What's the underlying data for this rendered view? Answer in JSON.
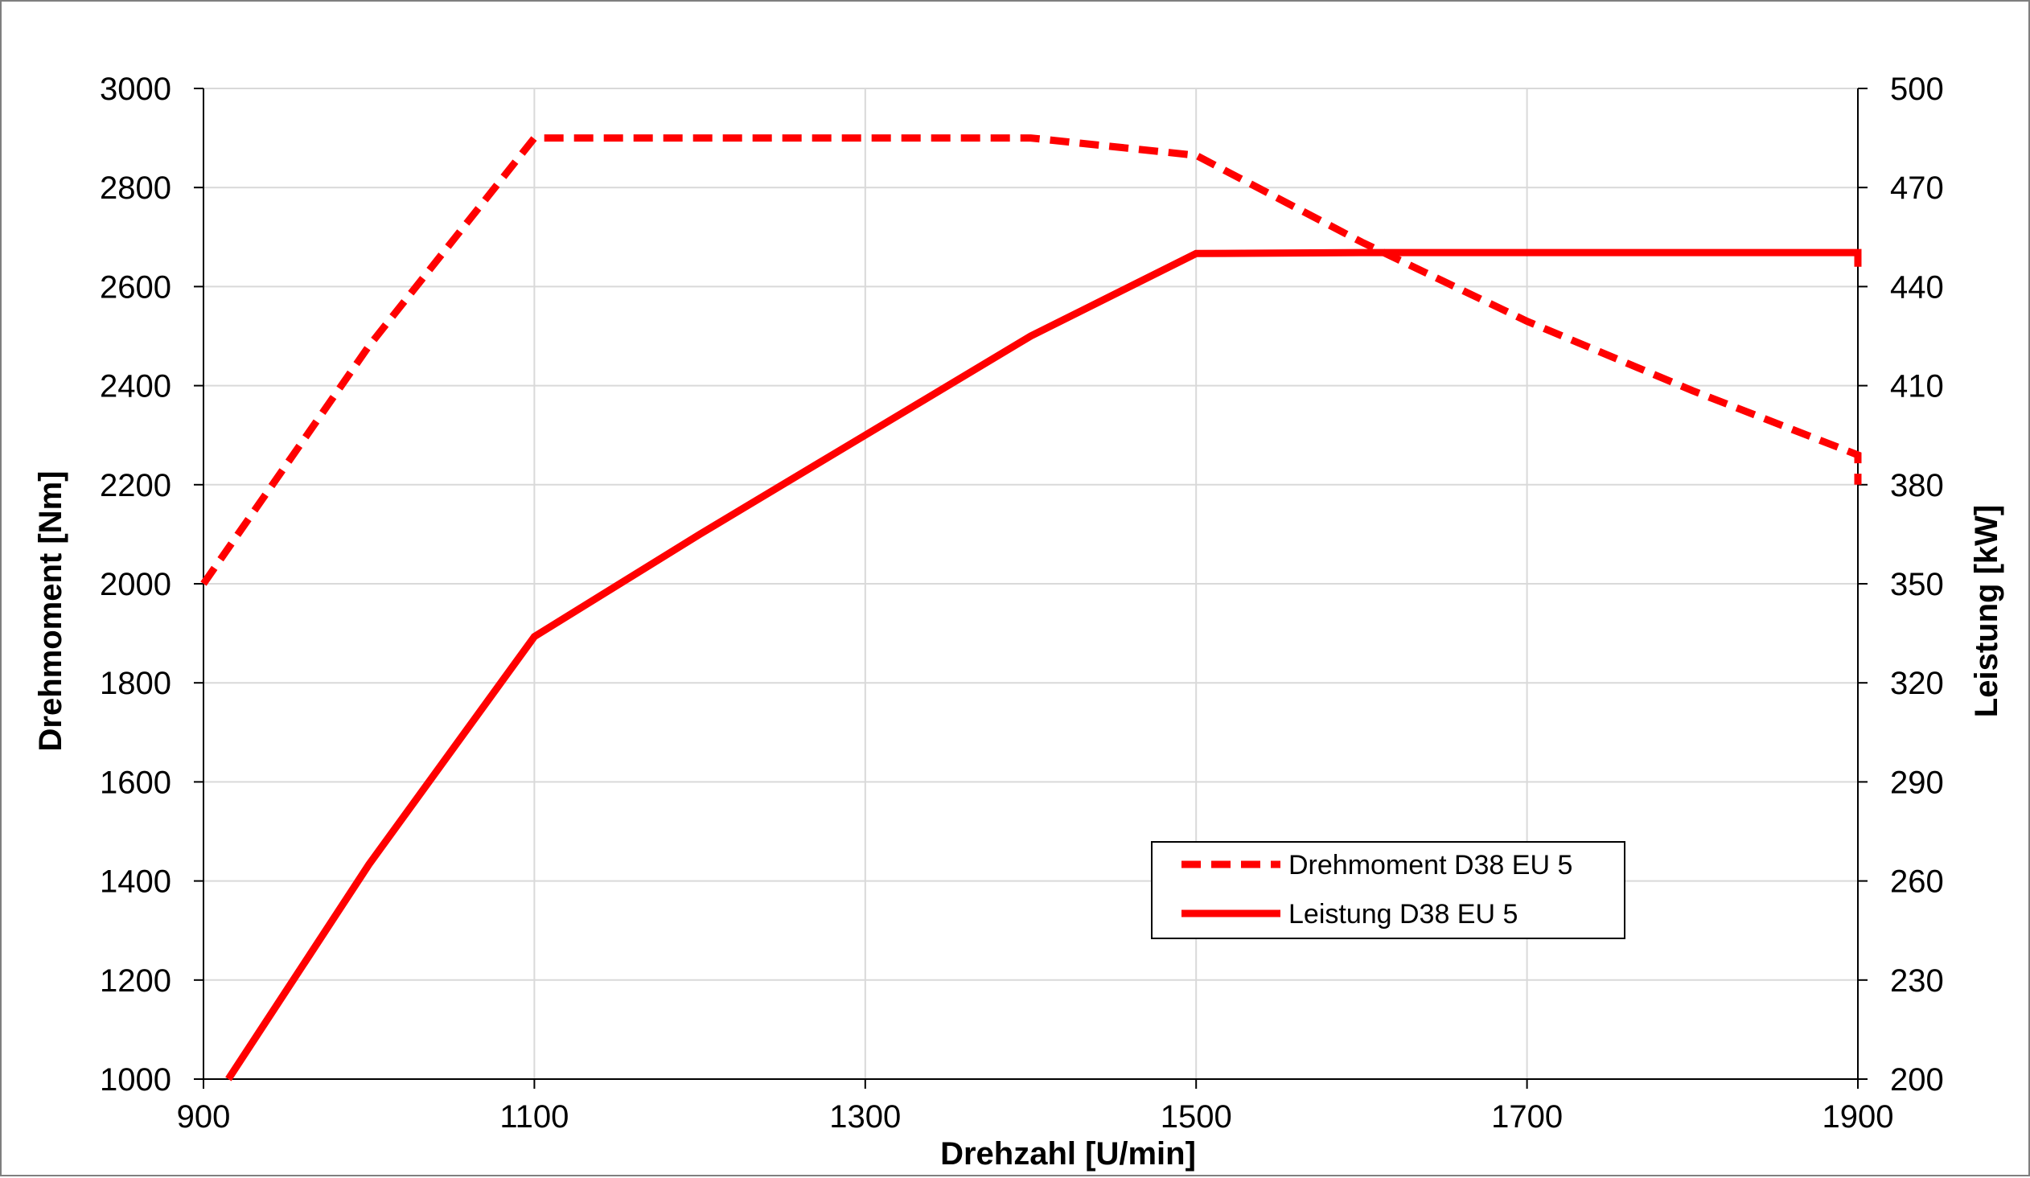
{
  "chart_data": {
    "type": "line",
    "title": "",
    "xlabel": "Drehzahl [U/min]",
    "ylabel_left": "Drehmoment [Nm]",
    "ylabel_right": "Leistung [kW]",
    "xlim": [
      900,
      1900
    ],
    "x_ticks": [
      "900",
      "1100",
      "1300",
      "1500",
      "1700",
      "1900"
    ],
    "ylim_left": [
      1000,
      3000
    ],
    "y_left_ticks": [
      "1000",
      "1200",
      "1400",
      "1600",
      "1800",
      "2000",
      "2200",
      "2400",
      "2600",
      "2800",
      "3000"
    ],
    "ylim_right": [
      200,
      500
    ],
    "y_right_ticks": [
      "200",
      "230",
      "260",
      "290",
      "320",
      "350",
      "380",
      "410",
      "440",
      "470",
      "500"
    ],
    "grid": "vertical and horizontal major gridlines",
    "legend_position": "lower-right",
    "series": [
      {
        "name": "Drehmoment D38 EU 5",
        "axis": "left",
        "style": "dashed",
        "color": "#ff0000",
        "points": [
          [
            900,
            2000
          ],
          [
            1000,
            2480
          ],
          [
            1100,
            2900
          ],
          [
            1200,
            2900
          ],
          [
            1300,
            2900
          ],
          [
            1400,
            2900
          ],
          [
            1500,
            2865
          ],
          [
            1600,
            2690
          ],
          [
            1700,
            2530
          ],
          [
            1800,
            2390
          ],
          [
            1900,
            2260
          ],
          [
            1900,
            2200
          ]
        ]
      },
      {
        "name": "Leistung D38 EU 5",
        "axis": "right",
        "style": "solid",
        "color": "#ff0000",
        "points": [
          [
            915,
            200
          ],
          [
            1000,
            265
          ],
          [
            1100,
            334
          ],
          [
            1200,
            365
          ],
          [
            1300,
            395
          ],
          [
            1400,
            425
          ],
          [
            1500,
            450
          ],
          [
            1600,
            450.3
          ],
          [
            1700,
            450.3
          ],
          [
            1800,
            450.3
          ],
          [
            1900,
            450.3
          ],
          [
            1900,
            446
          ]
        ]
      }
    ]
  }
}
